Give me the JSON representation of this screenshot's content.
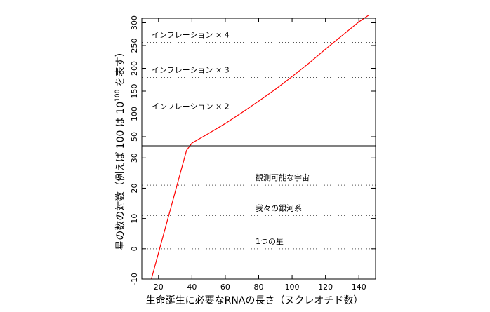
{
  "chart_data": {
    "type": "line",
    "xlabel": "生命誕生に必要なRNAの長さ（ヌクレオチド数）",
    "ylabel": "星の数の対数（例えば 100 は 10¹⁰⁰ を表す）",
    "ylabel_parts": {
      "main": "星の数の対数（例えば 100 は 10",
      "superscript": "100",
      "tail": " を表す）"
    },
    "xlim": [
      10,
      150
    ],
    "x_ticks": [
      20,
      40,
      60,
      80,
      100,
      120,
      140
    ],
    "x_tick_labels": [
      "20",
      "40",
      "60",
      "80",
      "100",
      "120",
      "140"
    ],
    "panels": [
      {
        "position": "top",
        "ylim": [
          30,
          310
        ],
        "y_ticks": [
          50,
          100,
          150,
          200,
          250,
          300
        ],
        "y_tick_labels": [
          "50",
          "100",
          "150",
          "200",
          "250",
          "300"
        ],
        "reference_lines": [
          {
            "y": 100,
            "label": "インフレーション × 2"
          },
          {
            "y": 180,
            "label": "インフレーション × 3"
          },
          {
            "y": 257,
            "label": "インフレーション × 4"
          }
        ]
      },
      {
        "position": "bottom",
        "ylim": [
          -10,
          34
        ],
        "y_ticks": [
          -10,
          0,
          10,
          20,
          30
        ],
        "y_tick_labels": [
          "-10",
          "0",
          "10",
          "20",
          "30"
        ],
        "reference_lines": [
          {
            "y": 0,
            "label": "1つの星"
          },
          {
            "y": 11,
            "label": "我々の銀河系"
          },
          {
            "y": 21,
            "label": "観測可能な宇宙"
          }
        ]
      }
    ],
    "series": [
      {
        "color": "#ff0000",
        "points": [
          [
            15.7,
            -10
          ],
          [
            36.8,
            32.5
          ],
          [
            40,
            36
          ],
          [
            50,
            57
          ],
          [
            60,
            79
          ],
          [
            70,
            103
          ],
          [
            80,
            128
          ],
          [
            90,
            154
          ],
          [
            100,
            182
          ],
          [
            110,
            211
          ],
          [
            120,
            242
          ],
          [
            130,
            272
          ],
          [
            140,
            302
          ],
          [
            146,
            317
          ]
        ]
      }
    ]
  }
}
